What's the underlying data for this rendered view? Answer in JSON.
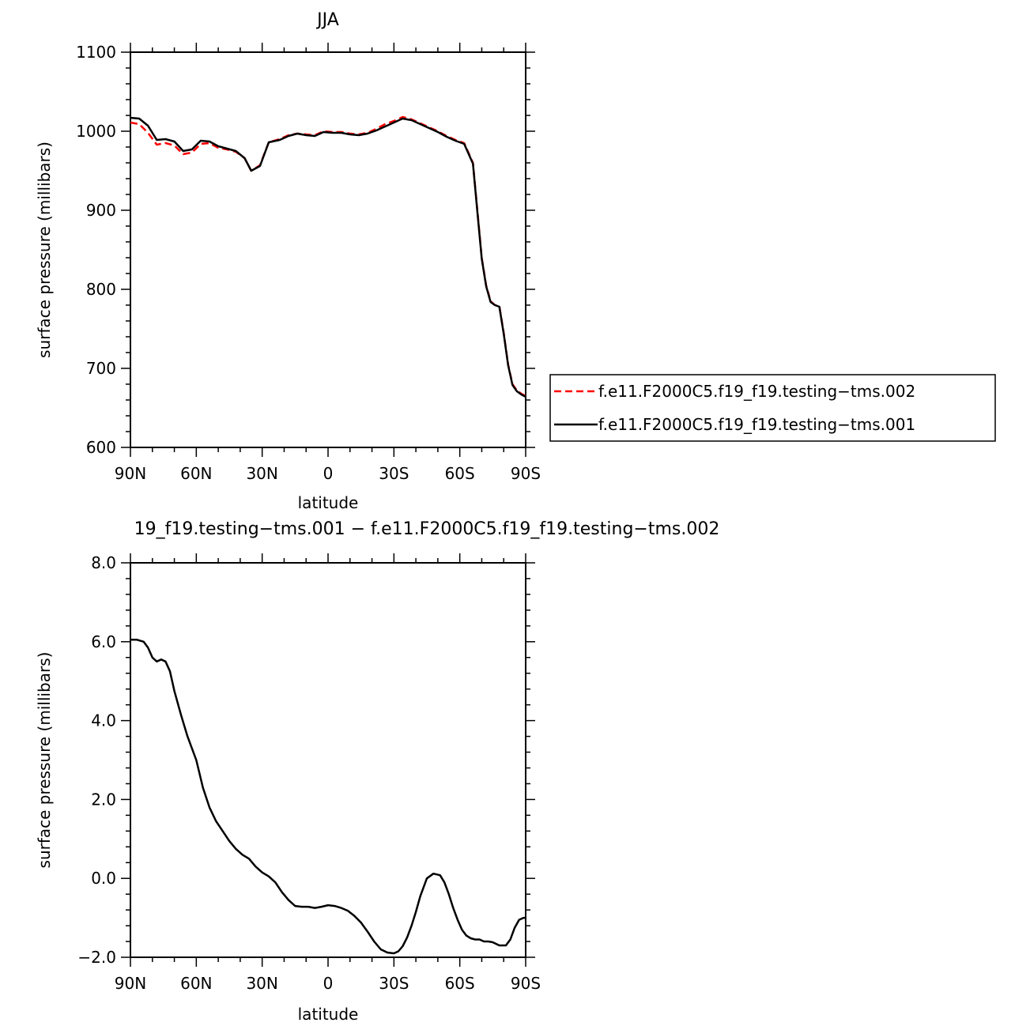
{
  "chart_data": [
    {
      "type": "line",
      "title": "JJA",
      "xlabel": "latitude",
      "ylabel": "surface pressure (millibars)",
      "xlim": [
        90,
        -90
      ],
      "ylim": [
        600,
        1100
      ],
      "xticks": [
        90,
        60,
        30,
        0,
        -30,
        -60,
        -90
      ],
      "xtick_labels": [
        "90N",
        "60N",
        "30N",
        "0",
        "30S",
        "60S",
        "90S"
      ],
      "yticks": [
        600,
        700,
        800,
        900,
        1000,
        1100
      ],
      "ytick_labels": [
        "600",
        "700",
        "800",
        "900",
        "1000",
        "1100"
      ],
      "legend_position": "right",
      "series": [
        {
          "name": "f.e11.F2000C5.f19_f19.testing−tms.002",
          "color": "#ff0000",
          "dash": "dashed",
          "x": [
            90,
            86,
            82,
            78,
            74,
            70,
            66,
            62,
            58,
            54,
            50,
            46,
            42,
            38,
            35,
            31,
            27,
            22,
            18,
            14,
            10,
            6,
            2,
            -2,
            -6,
            -10,
            -14,
            -18,
            -22,
            -26,
            -30,
            -34,
            -38,
            -42,
            -46,
            -50,
            -54,
            -58,
            -62,
            -66,
            -68,
            -70,
            -72,
            -74,
            -76,
            -78,
            -80,
            -82,
            -84,
            -86,
            -88,
            -90
          ],
          "y": [
            1011,
            1009,
            998,
            983,
            985,
            982,
            971,
            973,
            984,
            985,
            979,
            977,
            974,
            966,
            950,
            957,
            986,
            990,
            995,
            997,
            996,
            995,
            1000,
            999,
            999,
            997,
            996,
            998,
            1003,
            1009,
            1013,
            1018,
            1015,
            1010,
            1005,
            1000,
            994,
            989,
            985,
            960,
            900,
            840,
            805,
            785,
            780,
            779,
            745,
            705,
            680,
            672,
            668,
            665
          ]
        },
        {
          "name": "f.e11.F2000C5.f19_f19.testing−tms.001",
          "color": "#000000",
          "dash": "solid",
          "x": [
            90,
            86,
            82,
            78,
            74,
            70,
            66,
            62,
            58,
            54,
            50,
            46,
            42,
            38,
            35,
            31,
            27,
            22,
            18,
            14,
            10,
            6,
            2,
            -2,
            -6,
            -10,
            -14,
            -18,
            -22,
            -26,
            -30,
            -34,
            -38,
            -42,
            -46,
            -50,
            -54,
            -58,
            -62,
            -66,
            -68,
            -70,
            -72,
            -74,
            -76,
            -78,
            -80,
            -82,
            -84,
            -86,
            -88,
            -90
          ],
          "y": [
            1017,
            1016,
            1007,
            989,
            990,
            987,
            975,
            977,
            988,
            987,
            981,
            978,
            975,
            966,
            950,
            956,
            986,
            989,
            994,
            997,
            995,
            994,
            999,
            998,
            998,
            996,
            995,
            997,
            1001,
            1006,
            1011,
            1016,
            1014,
            1009,
            1004,
            999,
            993,
            988,
            984,
            959,
            898,
            839,
            804,
            784,
            780,
            778,
            744,
            704,
            679,
            671,
            667,
            664
          ]
        }
      ]
    },
    {
      "type": "line",
      "title": "19_f19.testing−tms.001 − f.e11.F2000C5.f19_f19.testing−tms.002",
      "xlabel": "latitude",
      "ylabel": "surface pressure (millibars)",
      "xlim": [
        90,
        -90
      ],
      "ylim": [
        -2.0,
        8.0
      ],
      "xticks": [
        90,
        60,
        30,
        0,
        -30,
        -60,
        -90
      ],
      "xtick_labels": [
        "90N",
        "60N",
        "30N",
        "0",
        "30S",
        "60S",
        "90S"
      ],
      "yticks": [
        -2,
        0,
        2,
        4,
        6,
        8
      ],
      "ytick_labels": [
        "−2.0",
        "0.0",
        "2.0",
        "4.0",
        "6.0",
        "8.0"
      ],
      "series": [
        {
          "color": "#000000",
          "dash": "solid",
          "x": [
            90,
            87,
            84,
            82,
            80,
            78,
            76,
            74,
            72,
            70,
            67,
            64,
            60,
            57,
            54,
            51,
            48,
            45,
            42,
            39,
            36,
            33,
            30,
            27,
            24,
            21,
            18,
            15,
            12,
            9,
            6,
            3,
            0,
            -3,
            -6,
            -9,
            -12,
            -15,
            -18,
            -21,
            -24,
            -27,
            -30,
            -32,
            -34,
            -36,
            -38,
            -40,
            -42,
            -45,
            -48,
            -51,
            -53,
            -55,
            -57,
            -59,
            -61,
            -63,
            -65,
            -67,
            -69,
            -71,
            -73,
            -75,
            -78,
            -81,
            -83,
            -85,
            -87,
            -89,
            -90
          ],
          "y": [
            6.05,
            6.05,
            6.0,
            5.85,
            5.6,
            5.5,
            5.55,
            5.5,
            5.25,
            4.75,
            4.15,
            3.6,
            3.0,
            2.3,
            1.8,
            1.45,
            1.2,
            0.95,
            0.75,
            0.6,
            0.5,
            0.3,
            0.15,
            0.05,
            -0.1,
            -0.35,
            -0.55,
            -0.7,
            -0.72,
            -0.72,
            -0.75,
            -0.72,
            -0.68,
            -0.7,
            -0.75,
            -0.82,
            -0.95,
            -1.12,
            -1.35,
            -1.6,
            -1.8,
            -1.88,
            -1.9,
            -1.85,
            -1.72,
            -1.5,
            -1.2,
            -0.85,
            -0.45,
            0.0,
            0.12,
            0.08,
            -0.1,
            -0.4,
            -0.75,
            -1.05,
            -1.3,
            -1.45,
            -1.52,
            -1.55,
            -1.55,
            -1.6,
            -1.6,
            -1.62,
            -1.7,
            -1.7,
            -1.55,
            -1.25,
            -1.05,
            -1.0,
            -1.0
          ]
        }
      ]
    }
  ]
}
